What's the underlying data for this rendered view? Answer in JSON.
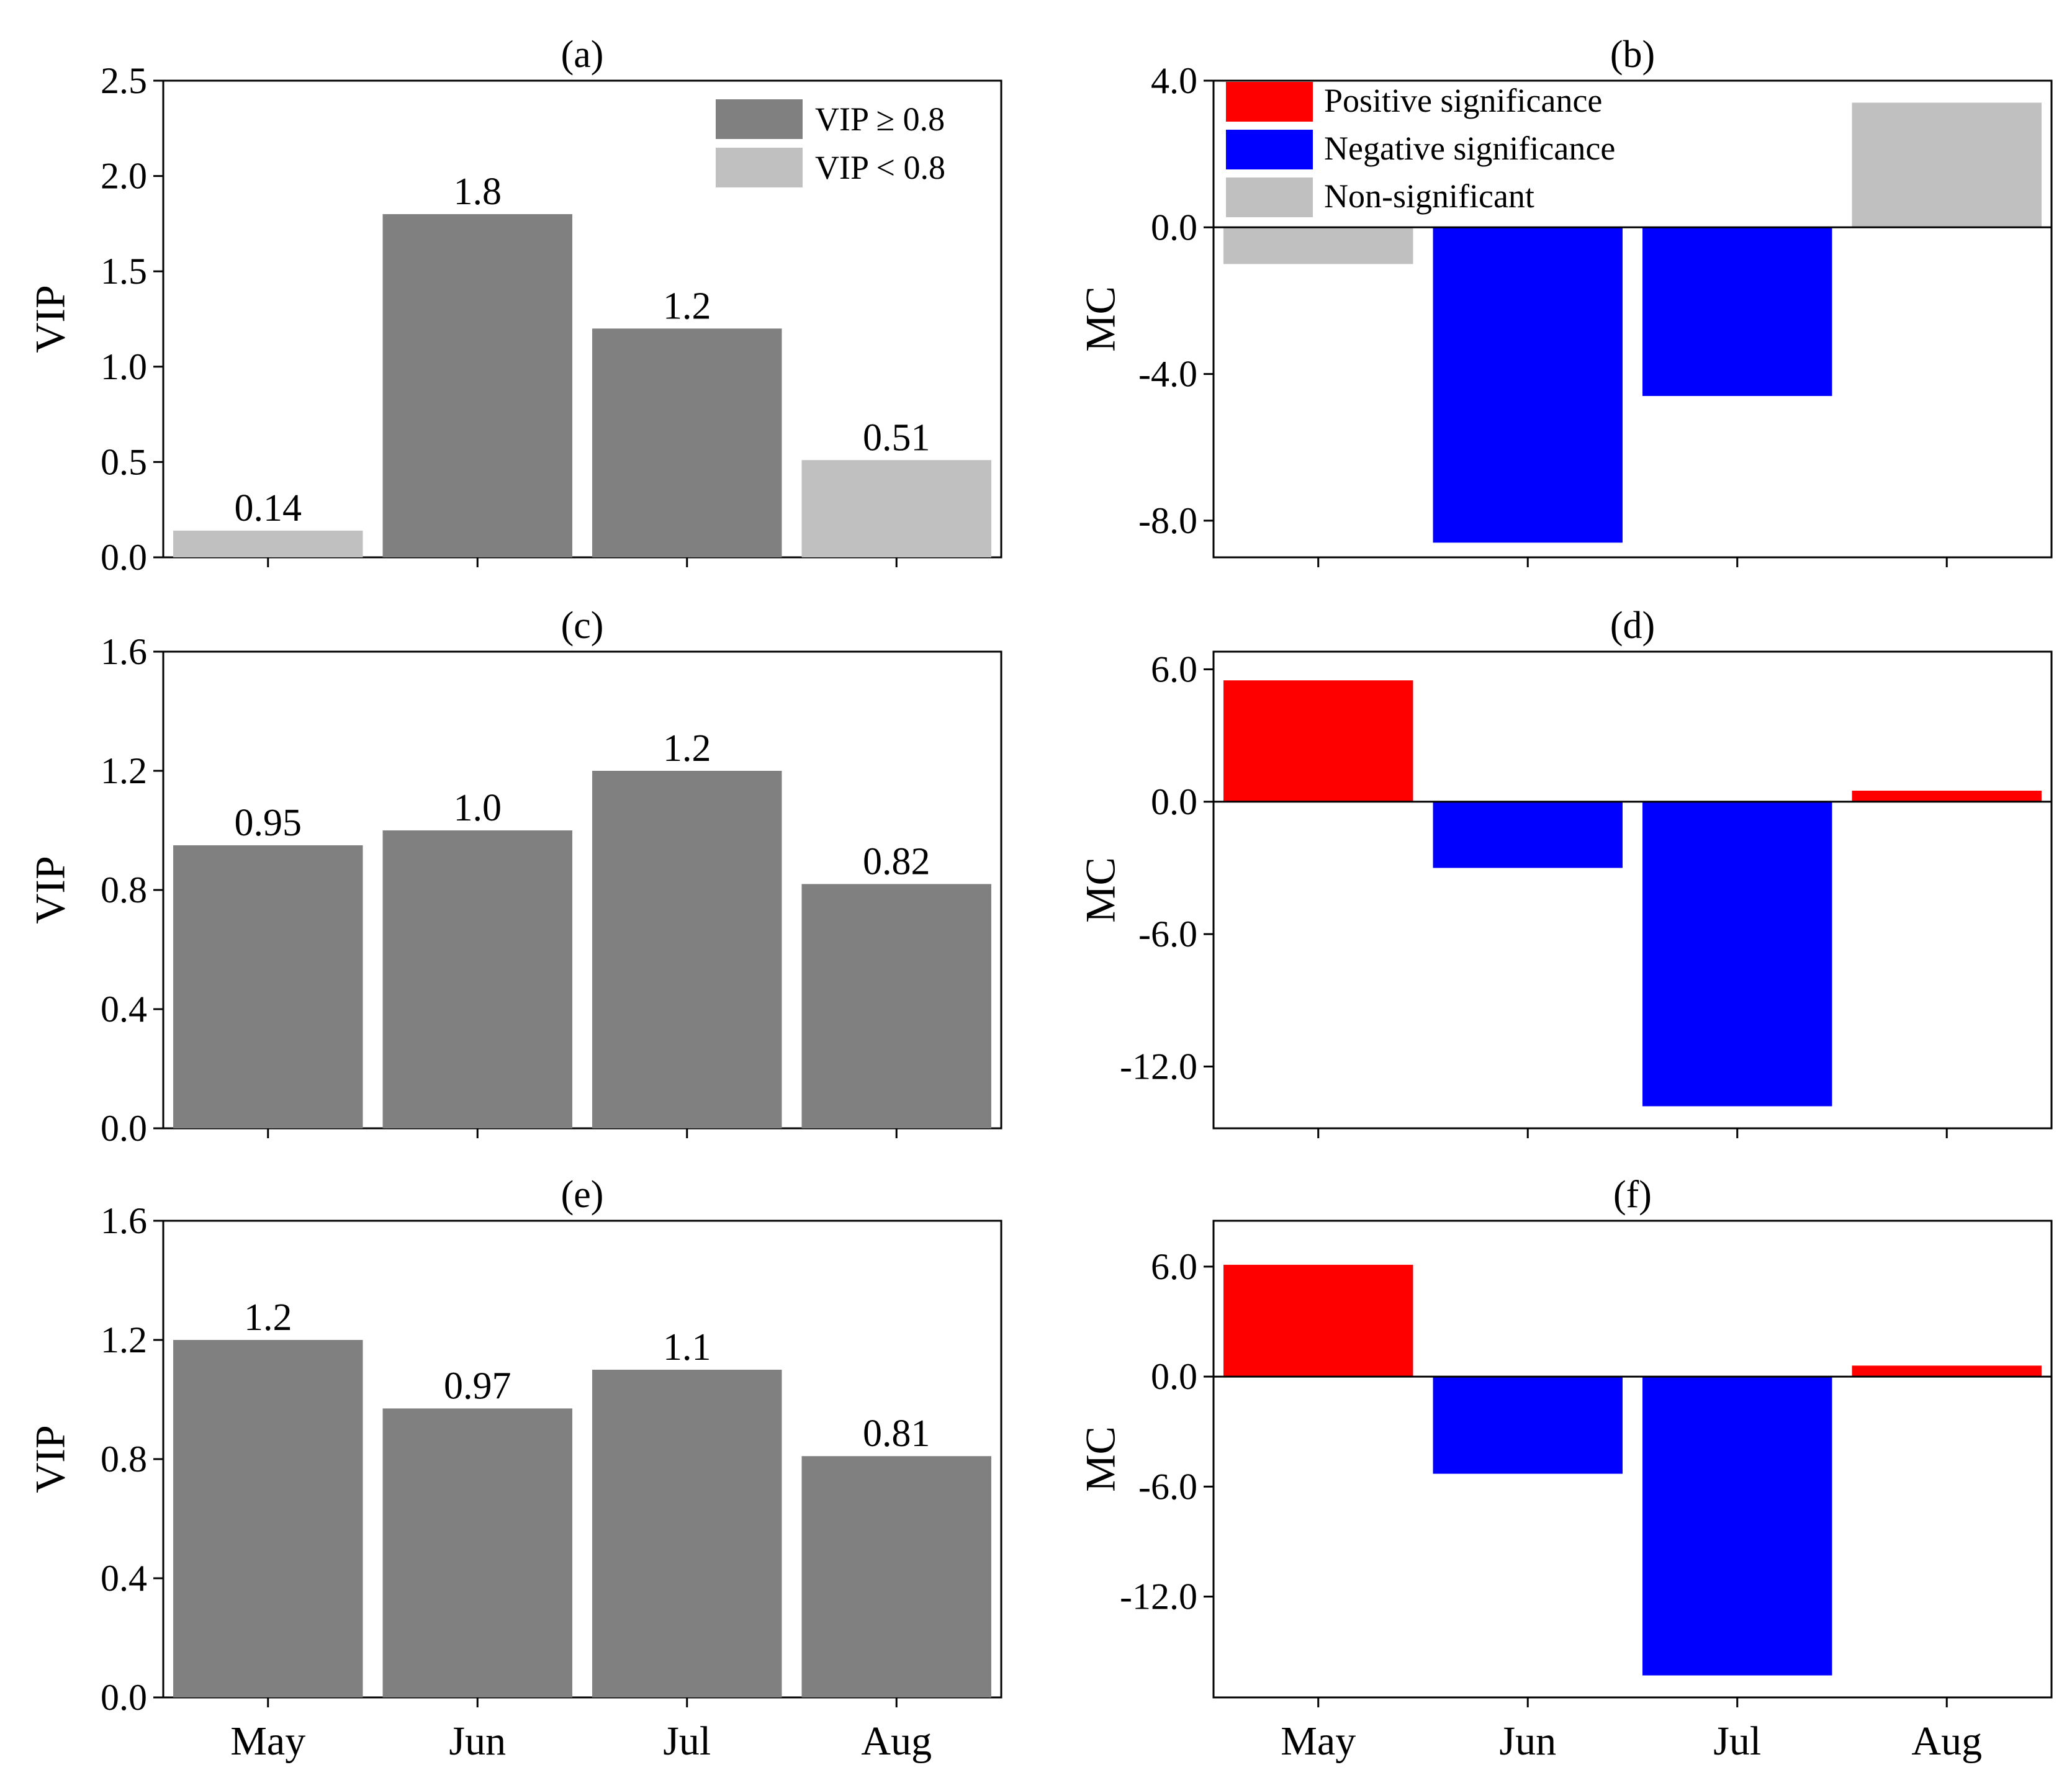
{
  "figure": {
    "categories": [
      "May",
      "Jun",
      "Jul",
      "Aug"
    ]
  },
  "colors": {
    "vip_high": "#808080",
    "vip_low": "#c0c0c0",
    "positive": "#ff0000",
    "negative": "#0000ff",
    "nonsig": "#c0c0c0"
  },
  "legends": {
    "vip": [
      {
        "label": "VIP ≥ 0.8",
        "color_key": "vip_high"
      },
      {
        "label": "VIP < 0.8",
        "color_key": "vip_low"
      }
    ],
    "mc": [
      {
        "label": "Positive significance",
        "color_key": "positive"
      },
      {
        "label": "Negative significance",
        "color_key": "negative"
      },
      {
        "label": "Non-significant",
        "color_key": "nonsig"
      }
    ]
  },
  "chart_data": [
    {
      "id": "a",
      "type": "bar",
      "title": "(a)",
      "ylabel": "VIP",
      "xlabel": "",
      "categories": [
        "May",
        "Jun",
        "Jul",
        "Aug"
      ],
      "values": [
        0.14,
        1.8,
        1.2,
        0.51
      ],
      "value_labels": [
        "0.14",
        "1.8",
        "1.2",
        "0.51"
      ],
      "bar_color_keys": [
        "vip_low",
        "vip_high",
        "vip_high",
        "vip_low"
      ],
      "ylim": [
        0,
        2.5
      ],
      "yticks": [
        0,
        0.5,
        1.0,
        1.5,
        2.0,
        2.5
      ],
      "ytick_labels": [
        "0.0",
        "0.5",
        "1.0",
        "1.5",
        "2.0",
        "2.5"
      ],
      "legend": "vip",
      "legend_position": "top-right",
      "grid": false
    },
    {
      "id": "b",
      "type": "bar",
      "title": "(b)",
      "ylabel": "MC",
      "xlabel": "",
      "categories": [
        "May",
        "Jun",
        "Jul",
        "Aug"
      ],
      "values": [
        -1.0,
        -8.6,
        -4.6,
        3.4
      ],
      "bar_color_keys": [
        "nonsig",
        "negative",
        "negative",
        "nonsig"
      ],
      "ylim": [
        -9.0,
        4.0
      ],
      "yticks": [
        -8.0,
        -4.0,
        0.0,
        4.0
      ],
      "ytick_labels": [
        "-8.0",
        "-4.0",
        "0.0",
        "4.0"
      ],
      "zero_line": true,
      "legend": "mc",
      "legend_position": "top-left",
      "grid": false
    },
    {
      "id": "c",
      "type": "bar",
      "title": "(c)",
      "ylabel": "VIP",
      "xlabel": "",
      "categories": [
        "May",
        "Jun",
        "Jul",
        "Aug"
      ],
      "values": [
        0.95,
        1.0,
        1.2,
        0.82
      ],
      "value_labels": [
        "0.95",
        "1.0",
        "1.2",
        "0.82"
      ],
      "bar_color_keys": [
        "vip_high",
        "vip_high",
        "vip_high",
        "vip_high"
      ],
      "ylim": [
        0,
        1.6
      ],
      "yticks": [
        0,
        0.4,
        0.8,
        1.2,
        1.6
      ],
      "ytick_labels": [
        "0.0",
        "0.4",
        "0.8",
        "1.2",
        "1.6"
      ],
      "grid": false
    },
    {
      "id": "d",
      "type": "bar",
      "title": "(d)",
      "ylabel": "MC",
      "xlabel": "",
      "categories": [
        "May",
        "Jun",
        "Jul",
        "Aug"
      ],
      "values": [
        5.5,
        -3.0,
        -13.8,
        0.5
      ],
      "bar_color_keys": [
        "positive",
        "negative",
        "negative",
        "positive"
      ],
      "ylim": [
        -14.8,
        6.8
      ],
      "yticks": [
        -12.0,
        -6.0,
        0.0,
        6.0
      ],
      "ytick_labels": [
        "-12.0",
        "-6.0",
        "0.0",
        "6.0"
      ],
      "zero_line": true,
      "grid": false
    },
    {
      "id": "e",
      "type": "bar",
      "title": "(e)",
      "ylabel": "VIP",
      "xlabel": "",
      "categories": [
        "May",
        "Jun",
        "Jul",
        "Aug"
      ],
      "values": [
        1.2,
        0.97,
        1.1,
        0.81
      ],
      "value_labels": [
        "1.2",
        "0.97",
        "1.1",
        "0.81"
      ],
      "bar_color_keys": [
        "vip_high",
        "vip_high",
        "vip_high",
        "vip_high"
      ],
      "ylim": [
        0,
        1.6
      ],
      "yticks": [
        0,
        0.4,
        0.8,
        1.2,
        1.6
      ],
      "ytick_labels": [
        "0.0",
        "0.4",
        "0.8",
        "1.2",
        "1.6"
      ],
      "show_xlabels": true,
      "grid": false
    },
    {
      "id": "f",
      "type": "bar",
      "title": "(f)",
      "ylabel": "MC",
      "xlabel": "",
      "categories": [
        "May",
        "Jun",
        "Jul",
        "Aug"
      ],
      "values": [
        6.1,
        -5.3,
        -16.3,
        0.6
      ],
      "bar_color_keys": [
        "positive",
        "negative",
        "negative",
        "positive"
      ],
      "ylim": [
        -17.5,
        8.5
      ],
      "yticks": [
        -12.0,
        -6.0,
        0.0,
        6.0
      ],
      "ytick_labels": [
        "-12.0",
        "-6.0",
        "0.0",
        "6.0"
      ],
      "zero_line": true,
      "show_xlabels": true,
      "grid": false
    }
  ]
}
